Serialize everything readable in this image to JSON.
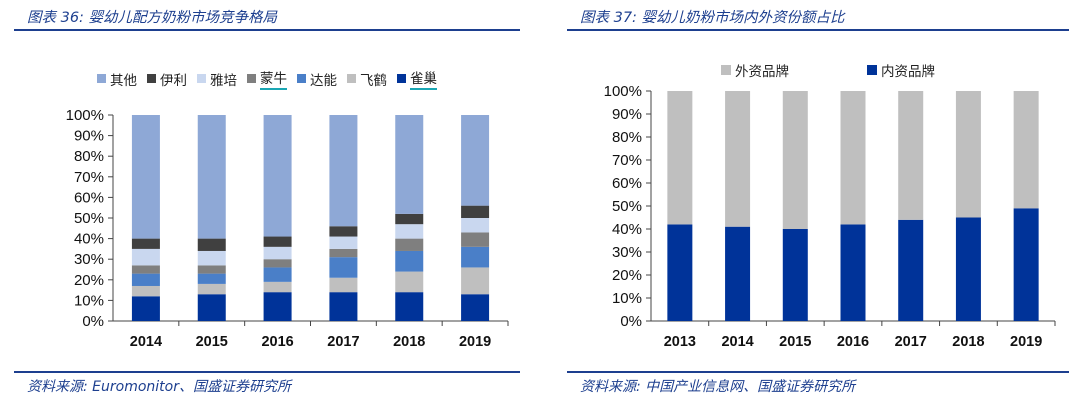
{
  "left_panel": {
    "title": "图表 36:  婴幼儿配方奶粉市场竞争格局",
    "source": "资料来源: Euromonitor、国盛证券研究所"
  },
  "right_panel": {
    "title": "图表 37:  婴幼儿奶粉市场内外资份额占比",
    "source": "资料来源: 中国产业信息网、国盛证券研究所"
  },
  "chart_data": [
    {
      "type": "bar",
      "stacked": true,
      "categories": [
        "2014",
        "2015",
        "2016",
        "2017",
        "2018",
        "2019"
      ],
      "yticks": [
        "0%",
        "10%",
        "20%",
        "30%",
        "40%",
        "50%",
        "60%",
        "70%",
        "80%",
        "90%",
        "100%"
      ],
      "ylim": [
        0,
        100
      ],
      "legend_position": "top",
      "series": [
        {
          "name": "雀巢",
          "color": "#003399",
          "values": [
            12,
            13,
            14,
            14,
            14,
            13
          ]
        },
        {
          "name": "飞鹤",
          "color": "#bfbfbf",
          "values": [
            5,
            5,
            5,
            7,
            10,
            13
          ]
        },
        {
          "name": "达能",
          "color": "#4a7fc8",
          "values": [
            6,
            5,
            7,
            10,
            10,
            10
          ]
        },
        {
          "name": "蒙牛",
          "color": "#7f7f7f",
          "values": [
            4,
            4,
            4,
            4,
            6,
            7
          ]
        },
        {
          "name": "雅培",
          "color": "#c9d7ef",
          "values": [
            8,
            7,
            6,
            6,
            7,
            7
          ]
        },
        {
          "name": "伊利",
          "color": "#404040",
          "values": [
            5,
            6,
            5,
            5,
            5,
            6
          ]
        },
        {
          "name": "其他",
          "color": "#8ea8d6",
          "values": [
            60,
            60,
            59,
            54,
            48,
            44
          ]
        }
      ],
      "legend_order": [
        "其他",
        "伊利",
        "雅培",
        "蒙牛",
        "达能",
        "飞鹤",
        "雀巢"
      ],
      "legend_underlined": [
        "蒙牛",
        "雀巢"
      ]
    },
    {
      "type": "bar",
      "stacked": true,
      "categories": [
        "2013",
        "2014",
        "2015",
        "2016",
        "2017",
        "2018",
        "2019"
      ],
      "yticks": [
        "0%",
        "10%",
        "20%",
        "30%",
        "40%",
        "50%",
        "60%",
        "70%",
        "80%",
        "90%",
        "100%"
      ],
      "ylim": [
        0,
        100
      ],
      "legend_position": "top",
      "series": [
        {
          "name": "内资品牌",
          "color": "#003399",
          "values": [
            42,
            41,
            40,
            42,
            44,
            45,
            49
          ]
        },
        {
          "name": "外资品牌",
          "color": "#bfbfbf",
          "values": [
            58,
            59,
            60,
            58,
            56,
            55,
            51
          ]
        }
      ],
      "legend_order": [
        "外资品牌",
        "内资品牌"
      ]
    }
  ]
}
